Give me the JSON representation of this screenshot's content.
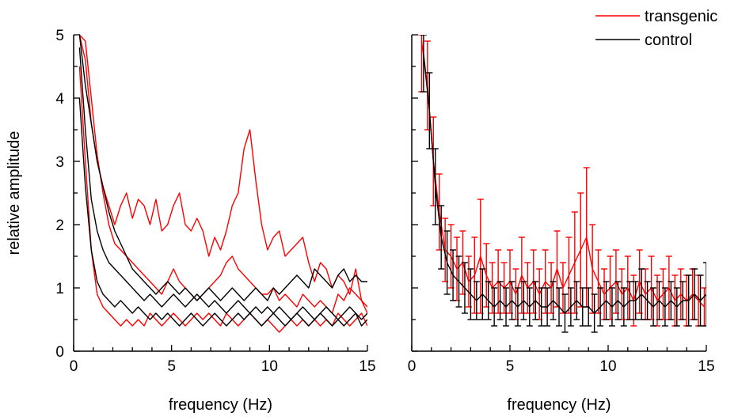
{
  "colors": {
    "transgenic": "#ff0000",
    "control": "#000000",
    "axis": "#000000",
    "background": "#ffffff"
  },
  "legend": {
    "placement": "top-right",
    "entries": [
      {
        "label": "transgenic",
        "color": "#ff0000"
      },
      {
        "label": "control",
        "color": "#000000"
      }
    ]
  },
  "chart_data": [
    {
      "type": "line",
      "panel": "left",
      "title": "",
      "xlabel": "frequency (Hz)",
      "ylabel": "relative amplitude",
      "xlim": [
        0,
        15
      ],
      "ylim": [
        0,
        5
      ],
      "xticks": [
        0,
        5,
        10,
        15
      ],
      "yticks": [
        0,
        1,
        2,
        3,
        4,
        5
      ],
      "grid": false,
      "series": [
        {
          "group": "transgenic",
          "x": [
            0.3,
            0.6,
            0.9,
            1.2,
            1.5,
            1.8,
            2.1,
            2.4,
            2.7,
            3.0,
            3.3,
            3.6,
            3.9,
            4.2,
            4.5,
            4.8,
            5.1,
            5.4,
            5.7,
            6.0,
            6.3,
            6.6,
            6.9,
            7.2,
            7.5,
            7.8,
            8.1,
            8.4,
            8.7,
            9.0,
            9.3,
            9.6,
            9.9,
            10.2,
            10.5,
            10.8,
            11.1,
            11.4,
            11.7,
            12.0,
            12.3,
            12.6,
            12.9,
            13.2,
            13.5,
            13.8,
            14.1,
            14.4,
            14.7,
            15.0
          ],
          "y": [
            5.0,
            4.6,
            3.6,
            3.0,
            2.6,
            2.3,
            2.0,
            2.3,
            2.5,
            2.1,
            2.4,
            2.3,
            2.0,
            2.4,
            1.9,
            2.0,
            2.3,
            2.5,
            2.0,
            1.9,
            2.1,
            1.9,
            1.5,
            1.8,
            1.6,
            1.9,
            2.3,
            2.5,
            3.2,
            3.5,
            2.7,
            2.0,
            1.6,
            1.8,
            1.9,
            1.5,
            1.6,
            1.7,
            1.8,
            1.4,
            1.1,
            1.4,
            1.3,
            1.0,
            1.2,
            1.1,
            0.9,
            1.3,
            0.8,
            0.7
          ]
        },
        {
          "group": "transgenic",
          "x": [
            0.3,
            0.6,
            0.9,
            1.2,
            1.5,
            1.8,
            2.1,
            2.4,
            2.7,
            3.0,
            3.3,
            3.6,
            3.9,
            4.2,
            4.5,
            4.8,
            5.1,
            5.4,
            5.7,
            6.0,
            6.3,
            6.6,
            6.9,
            7.2,
            7.5,
            7.8,
            8.1,
            8.4,
            8.7,
            9.0,
            9.3,
            9.6,
            9.9,
            10.2,
            10.5,
            10.8,
            11.1,
            11.4,
            11.7,
            12.0,
            12.3,
            12.6,
            12.9,
            13.2,
            13.5,
            13.8,
            14.1,
            14.4,
            14.7,
            15.0
          ],
          "y": [
            5.0,
            4.9,
            4.0,
            3.1,
            2.5,
            2.0,
            1.7,
            1.6,
            1.5,
            1.4,
            1.3,
            1.2,
            1.1,
            1.0,
            0.9,
            1.1,
            1.3,
            1.1,
            1.0,
            0.9,
            0.8,
            0.9,
            1.0,
            1.1,
            1.2,
            1.4,
            1.5,
            1.3,
            1.2,
            1.1,
            1.0,
            0.9,
            0.9,
            1.0,
            0.8,
            0.9,
            0.8,
            0.7,
            0.9,
            0.8,
            0.7,
            0.8,
            0.7,
            0.6,
            0.9,
            0.8,
            1.0,
            0.9,
            0.8,
            0.6
          ]
        },
        {
          "group": "transgenic",
          "x": [
            0.3,
            0.6,
            0.9,
            1.2,
            1.5,
            1.8,
            2.1,
            2.4,
            2.7,
            3.0,
            3.3,
            3.6,
            3.9,
            4.2,
            4.5,
            4.8,
            5.1,
            5.4,
            5.7,
            6.0,
            6.3,
            6.6,
            6.9,
            7.2,
            7.5,
            7.8,
            8.1,
            8.4,
            8.7,
            9.0,
            9.3,
            9.6,
            9.9,
            10.2,
            10.5,
            10.8,
            11.1,
            11.4,
            11.7,
            12.0,
            12.3,
            12.6,
            12.9,
            13.2,
            13.5,
            13.8,
            14.1,
            14.4,
            14.7,
            15.0
          ],
          "y": [
            4.5,
            3.0,
            1.6,
            0.9,
            0.7,
            0.6,
            0.5,
            0.4,
            0.5,
            0.4,
            0.5,
            0.4,
            0.6,
            0.5,
            0.4,
            0.5,
            0.6,
            0.5,
            0.4,
            0.5,
            0.6,
            0.5,
            0.6,
            0.5,
            0.4,
            0.6,
            0.5,
            0.4,
            0.5,
            0.6,
            0.5,
            0.4,
            0.5,
            0.4,
            0.3,
            0.4,
            0.5,
            0.4,
            0.5,
            0.4,
            0.5,
            0.4,
            0.5,
            0.4,
            0.6,
            0.5,
            0.4,
            0.5,
            0.6,
            0.4
          ]
        },
        {
          "group": "control",
          "x": [
            0.3,
            0.6,
            0.9,
            1.2,
            1.5,
            1.8,
            2.1,
            2.4,
            2.7,
            3.0,
            3.3,
            3.6,
            3.9,
            4.2,
            4.5,
            4.8,
            5.1,
            5.4,
            5.7,
            6.0,
            6.3,
            6.6,
            6.9,
            7.2,
            7.5,
            7.8,
            8.1,
            8.4,
            8.7,
            9.0,
            9.3,
            9.6,
            9.9,
            10.2,
            10.5,
            10.8,
            11.1,
            11.4,
            11.7,
            12.0,
            12.3,
            12.6,
            12.9,
            13.2,
            13.5,
            13.8,
            14.1,
            14.4,
            14.7,
            15.0
          ],
          "y": [
            5.0,
            4.2,
            3.6,
            3.0,
            2.6,
            2.2,
            1.9,
            1.7,
            1.5,
            1.3,
            1.2,
            1.1,
            1.0,
            0.9,
            1.0,
            1.1,
            1.0,
            0.9,
            1.0,
            0.9,
            0.8,
            0.9,
            1.0,
            0.9,
            0.8,
            0.9,
            1.0,
            0.9,
            0.8,
            0.9,
            1.0,
            0.9,
            0.8,
            1.0,
            0.9,
            1.0,
            1.1,
            1.2,
            1.1,
            1.0,
            1.3,
            1.2,
            1.1,
            1.0,
            1.2,
            1.3,
            1.1,
            1.2,
            1.1,
            1.1
          ]
        },
        {
          "group": "control",
          "x": [
            0.3,
            0.6,
            0.9,
            1.2,
            1.5,
            1.8,
            2.1,
            2.4,
            2.7,
            3.0,
            3.3,
            3.6,
            3.9,
            4.2,
            4.5,
            4.8,
            5.1,
            5.4,
            5.7,
            6.0,
            6.3,
            6.6,
            6.9,
            7.2,
            7.5,
            7.8,
            8.1,
            8.4,
            8.7,
            9.0,
            9.3,
            9.6,
            9.9,
            10.2,
            10.5,
            10.8,
            11.1,
            11.4,
            11.7,
            12.0,
            12.3,
            12.6,
            12.9,
            13.2,
            13.5,
            13.8,
            14.1,
            14.4,
            14.7,
            15.0
          ],
          "y": [
            4.8,
            3.5,
            2.4,
            1.9,
            1.6,
            1.4,
            1.3,
            1.2,
            1.1,
            1.0,
            0.9,
            0.8,
            0.9,
            0.8,
            0.7,
            0.8,
            0.9,
            0.8,
            0.7,
            0.8,
            0.9,
            0.8,
            0.7,
            0.8,
            0.7,
            0.6,
            0.7,
            0.8,
            0.7,
            0.6,
            0.7,
            0.6,
            0.7,
            0.6,
            0.7,
            0.6,
            0.5,
            0.6,
            0.7,
            0.6,
            0.5,
            0.6,
            0.7,
            0.6,
            0.5,
            0.6,
            0.7,
            0.6,
            0.5,
            0.6
          ]
        },
        {
          "group": "control",
          "x": [
            0.3,
            0.6,
            0.9,
            1.2,
            1.5,
            1.8,
            2.1,
            2.4,
            2.7,
            3.0,
            3.3,
            3.6,
            3.9,
            4.2,
            4.5,
            4.8,
            5.1,
            5.4,
            5.7,
            6.0,
            6.3,
            6.6,
            6.9,
            7.2,
            7.5,
            7.8,
            8.1,
            8.4,
            8.7,
            9.0,
            9.3,
            9.6,
            9.9,
            10.2,
            10.5,
            10.8,
            11.1,
            11.4,
            11.7,
            12.0,
            12.3,
            12.6,
            12.9,
            13.2,
            13.5,
            13.8,
            14.1,
            14.4,
            14.7,
            15.0
          ],
          "y": [
            4.0,
            2.6,
            1.6,
            1.1,
            0.9,
            0.8,
            0.7,
            0.8,
            0.7,
            0.6,
            0.7,
            0.6,
            0.5,
            0.6,
            0.5,
            0.6,
            0.5,
            0.4,
            0.5,
            0.6,
            0.5,
            0.4,
            0.5,
            0.6,
            0.5,
            0.4,
            0.5,
            0.6,
            0.5,
            0.6,
            0.5,
            0.4,
            0.5,
            0.6,
            0.5,
            0.4,
            0.5,
            0.6,
            0.5,
            0.4,
            0.5,
            0.6,
            0.5,
            0.4,
            0.5,
            0.4,
            0.5,
            0.6,
            0.4,
            0.5
          ]
        }
      ]
    },
    {
      "type": "line",
      "panel": "right",
      "title": "",
      "xlabel": "frequency (Hz)",
      "ylabel": "",
      "xlim": [
        0,
        15
      ],
      "ylim": [
        0,
        5
      ],
      "xticks": [
        0,
        5,
        10,
        15
      ],
      "yticks": [
        0,
        1,
        2,
        3,
        4,
        5
      ],
      "show_ytick_labels": false,
      "grid": false,
      "series": [
        {
          "name": "transgenic",
          "x": [
            0.5,
            0.8,
            1.1,
            1.4,
            1.7,
            2.0,
            2.3,
            2.6,
            2.9,
            3.2,
            3.5,
            3.8,
            4.1,
            4.4,
            4.7,
            5.0,
            5.3,
            5.6,
            5.9,
            6.2,
            6.5,
            6.8,
            7.1,
            7.4,
            7.7,
            8.0,
            8.3,
            8.6,
            8.9,
            9.2,
            9.5,
            9.8,
            10.1,
            10.4,
            10.7,
            11.0,
            11.3,
            11.6,
            11.9,
            12.2,
            12.5,
            12.8,
            13.1,
            13.4,
            13.7,
            14.0,
            14.3,
            14.6,
            14.9
          ],
          "y": [
            4.9,
            4.2,
            3.0,
            2.2,
            1.6,
            1.5,
            1.3,
            1.4,
            1.1,
            1.2,
            1.5,
            1.2,
            1.0,
            1.1,
            1.0,
            1.1,
            0.9,
            1.2,
            1.0,
            1.1,
            0.9,
            1.1,
            1.0,
            1.3,
            1.0,
            1.2,
            1.4,
            1.6,
            1.8,
            1.3,
            1.1,
            0.9,
            1.0,
            1.1,
            0.9,
            1.0,
            0.8,
            1.1,
            0.9,
            1.0,
            0.8,
            0.9,
            1.0,
            0.8,
            0.9,
            0.8,
            0.9,
            0.8,
            0.7
          ],
          "err": [
            0.8,
            0.7,
            0.7,
            0.6,
            0.5,
            0.5,
            0.5,
            0.5,
            0.4,
            0.6,
            0.9,
            0.5,
            0.4,
            0.5,
            0.4,
            0.5,
            0.4,
            0.6,
            0.4,
            0.5,
            0.4,
            0.5,
            0.4,
            0.6,
            0.4,
            0.6,
            0.8,
            0.9,
            1.1,
            0.7,
            0.5,
            0.4,
            0.5,
            0.5,
            0.4,
            0.5,
            0.4,
            0.5,
            0.4,
            0.5,
            0.4,
            0.4,
            0.5,
            0.4,
            0.4,
            0.4,
            0.4,
            0.4,
            0.3
          ]
        },
        {
          "name": "control",
          "x": [
            0.6,
            0.9,
            1.2,
            1.5,
            1.8,
            2.1,
            2.4,
            2.7,
            3.0,
            3.3,
            3.6,
            3.9,
            4.2,
            4.5,
            4.8,
            5.1,
            5.4,
            5.7,
            6.0,
            6.3,
            6.6,
            6.9,
            7.2,
            7.5,
            7.8,
            8.1,
            8.4,
            8.7,
            9.0,
            9.3,
            9.6,
            9.9,
            10.2,
            10.5,
            10.8,
            11.1,
            11.4,
            11.7,
            12.0,
            12.3,
            12.6,
            12.9,
            13.2,
            13.5,
            13.8,
            14.1,
            14.4,
            14.7,
            15.0
          ],
          "y": [
            4.7,
            3.8,
            2.6,
            1.8,
            1.4,
            1.2,
            1.1,
            1.0,
            0.9,
            0.8,
            0.9,
            0.8,
            0.7,
            0.8,
            0.7,
            0.8,
            0.7,
            0.8,
            0.7,
            0.8,
            0.7,
            0.7,
            0.8,
            0.7,
            0.6,
            0.7,
            0.8,
            0.7,
            0.7,
            0.6,
            0.7,
            0.8,
            0.7,
            0.8,
            0.7,
            0.8,
            0.8,
            0.9,
            0.8,
            0.7,
            0.8,
            0.7,
            0.8,
            0.7,
            0.8,
            0.8,
            0.9,
            0.8,
            0.9
          ],
          "err": [
            0.6,
            0.6,
            0.6,
            0.5,
            0.5,
            0.4,
            0.4,
            0.4,
            0.4,
            0.3,
            0.4,
            0.3,
            0.3,
            0.3,
            0.3,
            0.3,
            0.3,
            0.3,
            0.3,
            0.3,
            0.3,
            0.3,
            0.3,
            0.3,
            0.3,
            0.3,
            0.3,
            0.3,
            0.3,
            0.3,
            0.3,
            0.3,
            0.3,
            0.3,
            0.3,
            0.3,
            0.3,
            0.4,
            0.3,
            0.3,
            0.3,
            0.3,
            0.3,
            0.3,
            0.3,
            0.4,
            0.4,
            0.4,
            0.5
          ]
        }
      ]
    }
  ]
}
